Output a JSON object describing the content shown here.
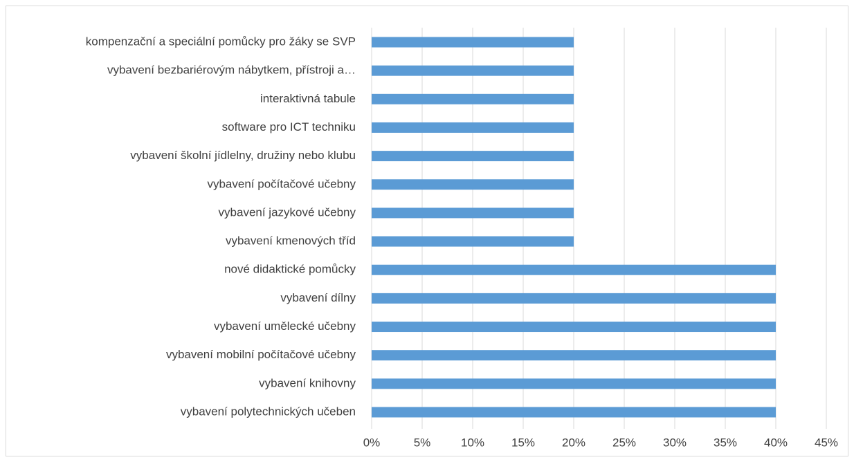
{
  "chart_data": {
    "type": "barh",
    "categories": [
      "kompenzační a speciální pomůcky pro žáky se SVP",
      "vybavení bezbariérovým nábytkem, přístroji a…",
      "interaktivná tabule",
      "software pro ICT techniku",
      "vybavení školní jídlelny, družiny nebo klubu",
      "vybavení počítačové učebny",
      "vybavení jazykové učebny",
      "vybavení kmenových tříd",
      "nové didaktické pomůcky",
      "vybavení dílny",
      "vybavení umělecké učebny",
      "vybavení mobilní počítačové učebny",
      "vybavení knihovny",
      "vybavení polytechnických učeben"
    ],
    "values": [
      20,
      20,
      20,
      20,
      20,
      20,
      20,
      20,
      40,
      40,
      40,
      40,
      40,
      40
    ],
    "color": "#5b9bd5",
    "xlim": [
      0,
      45
    ],
    "xticks": [
      {
        "value": 0,
        "label": "0%"
      },
      {
        "value": 5,
        "label": "5%"
      },
      {
        "value": 10,
        "label": "10%"
      },
      {
        "value": 15,
        "label": "15%"
      },
      {
        "value": 20,
        "label": "20%"
      },
      {
        "value": 25,
        "label": "25%"
      },
      {
        "value": 30,
        "label": "30%"
      },
      {
        "value": 35,
        "label": "35%"
      },
      {
        "value": 40,
        "label": "40%"
      },
      {
        "value": 45,
        "label": "45%"
      }
    ],
    "grid": true
  }
}
